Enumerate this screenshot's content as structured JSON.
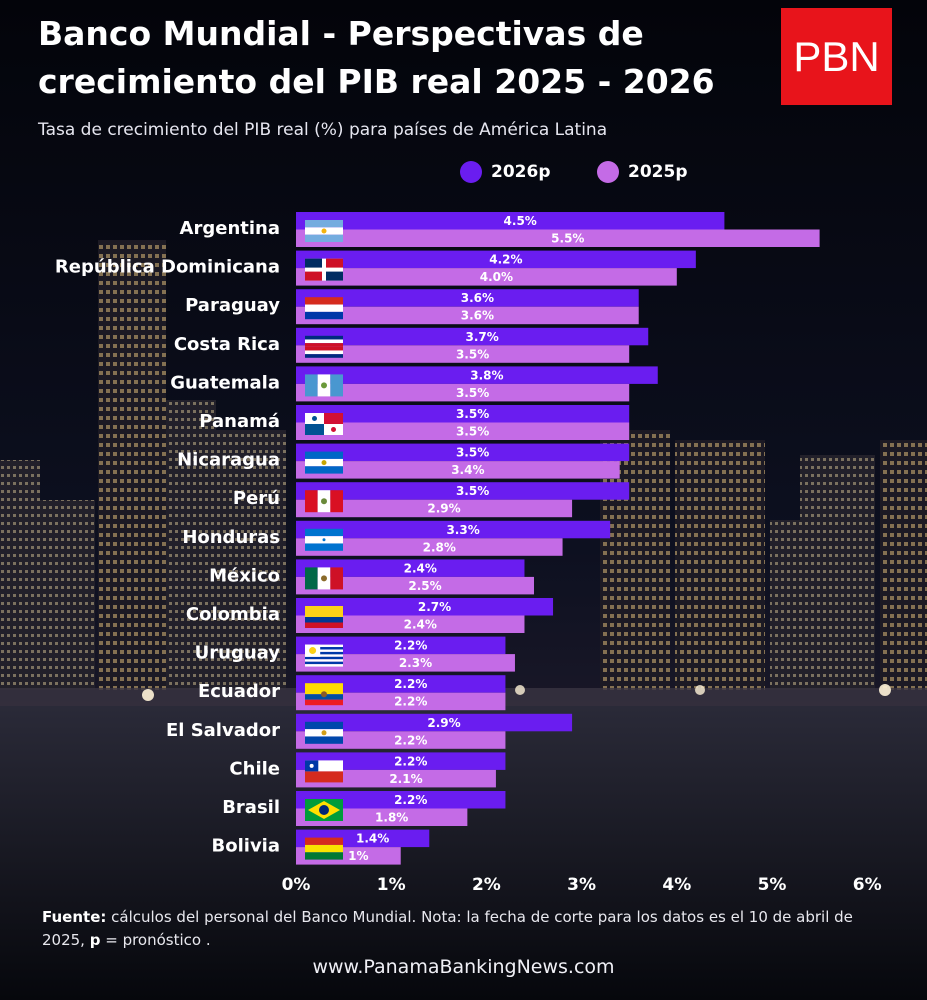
{
  "title_line1": "Banco Mundial - Perspectivas de",
  "title_line2": "crecimiento del PIB real 2025 - 2026",
  "subtitle": "Tasa de crecimiento del PIB real (%) para países de América Latina",
  "logo_text": "PBN",
  "footnote": {
    "source_label": "Fuente:",
    "source_text": " cálculos del personal del Banco Mundial. Nota: la fecha de corte para los datos es el 10 de abril de 2025, ",
    "p_label": "p",
    "p_text": " = pronóstico ."
  },
  "website": "www.PanamaBankingNews.com",
  "colors": {
    "series_2026": "#6a1df0",
    "series_2025": "#c46be6",
    "logo_red": "#e8141b"
  },
  "chart_data": {
    "type": "bar",
    "orientation": "horizontal",
    "title": "Banco Mundial - Perspectivas de crecimiento del PIB real 2025 - 2026",
    "subtitle": "Tasa de crecimiento del PIB real (%) para países de América Latina",
    "xlim": [
      0,
      6
    ],
    "x_ticks": [
      "0%",
      "1%",
      "2%",
      "3%",
      "4%",
      "5%",
      "6%"
    ],
    "legend_position": "top",
    "categories": [
      "Argentina",
      "República Dominicana",
      "Paraguay",
      "Costa Rica",
      "Guatemala",
      "Panamá",
      "Nicaragua",
      "Perú",
      "Honduras",
      "México",
      "Colombia",
      "Uruguay",
      "Ecuador",
      "El Salvador",
      "Chile",
      "Brasil",
      "Bolivia"
    ],
    "series": [
      {
        "name": "2026p",
        "color": "#6a1df0",
        "values": [
          4.5,
          4.2,
          3.6,
          3.7,
          3.8,
          3.5,
          3.5,
          3.5,
          3.3,
          2.4,
          2.7,
          2.2,
          2.2,
          2.9,
          2.2,
          2.2,
          1.4
        ],
        "labels": [
          "4.5%",
          "4.2%",
          "3.6%",
          "3.7%",
          "3.8%",
          "3.5%",
          "3.5%",
          "3.5%",
          "3.3%",
          "2.4%",
          "2.7%",
          "2.2%",
          "2.2%",
          "2.9%",
          "2.2%",
          "2.2%",
          "1.4%"
        ]
      },
      {
        "name": "2025p",
        "color": "#c46be6",
        "values": [
          5.5,
          4.0,
          3.6,
          3.5,
          3.5,
          3.5,
          3.4,
          2.9,
          2.8,
          2.5,
          2.4,
          2.3,
          2.2,
          2.2,
          2.1,
          1.8,
          1.1
        ],
        "labels": [
          "5.5%",
          "4.0%",
          "3.6%",
          "3.5%",
          "3.5%",
          "3.5%",
          "3.4%",
          "2.9%",
          "2.8%",
          "2.5%",
          "2.4%",
          "2.3%",
          "2.2%",
          "2.2%",
          "2.1%",
          "1.8%",
          "1%"
        ]
      }
    ],
    "flags": [
      "argentina-flag-icon",
      "dominican-republic-flag-icon",
      "paraguay-flag-icon",
      "costa-rica-flag-icon",
      "guatemala-flag-icon",
      "panama-flag-icon",
      "nicaragua-flag-icon",
      "peru-flag-icon",
      "honduras-flag-icon",
      "mexico-flag-icon",
      "colombia-flag-icon",
      "uruguay-flag-icon",
      "ecuador-flag-icon",
      "el-salvador-flag-icon",
      "chile-flag-icon",
      "brazil-flag-icon",
      "bolivia-flag-icon"
    ]
  }
}
